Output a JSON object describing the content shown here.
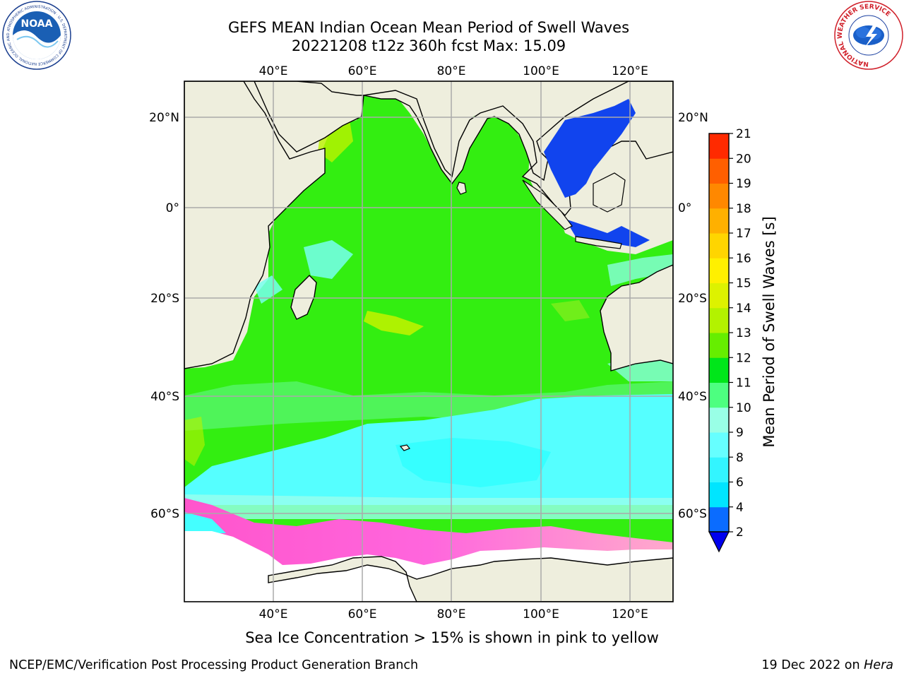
{
  "title": {
    "line1": "GEFS MEAN Indian Ocean Mean Period of Swell Waves",
    "line2": "20221208 t12z 360h fcst   Max: 15.09"
  },
  "map": {
    "lon_labels": [
      "40°E",
      "60°E",
      "80°E",
      "100°E",
      "120°E"
    ],
    "lat_labels": [
      "20°N",
      "0°",
      "20°S",
      "40°S",
      "60°S"
    ]
  },
  "colorbar": {
    "label": "Mean Period of Swell Waves [s]",
    "ticks": [
      "2",
      "4",
      "6",
      "8",
      "9",
      "10",
      "11",
      "12",
      "13",
      "14",
      "15",
      "16",
      "17",
      "18",
      "19",
      "20",
      "21"
    ],
    "colors": [
      "#0a6cff",
      "#00e5ff",
      "#33f5ff",
      "#66ffff",
      "#99ffe6",
      "#4dff80",
      "#00e61a",
      "#66ee00",
      "#b3f200",
      "#ddf200",
      "#fff000",
      "#ffd500",
      "#ffb000",
      "#ff8800",
      "#ff5f00",
      "#ff2a00"
    ],
    "extend_color": "#0000ee"
  },
  "note": "Sea Ice Concentration > 15% is shown in pink to yellow",
  "footer": {
    "left": "NCEP/EMC/Verification Post Processing Product Generation Branch",
    "right_text": "19 Dec 2022 on ",
    "right_italic": "Hera"
  },
  "logos": {
    "noaa": "NOAA",
    "noaa_ring": "NATIONAL OCEANIC AND ATMOSPHERIC ADMINISTRATION · U.S. DEPARTMENT OF COMMERCE",
    "nws_ring": "NATIONAL WEATHER SERVICE"
  }
}
